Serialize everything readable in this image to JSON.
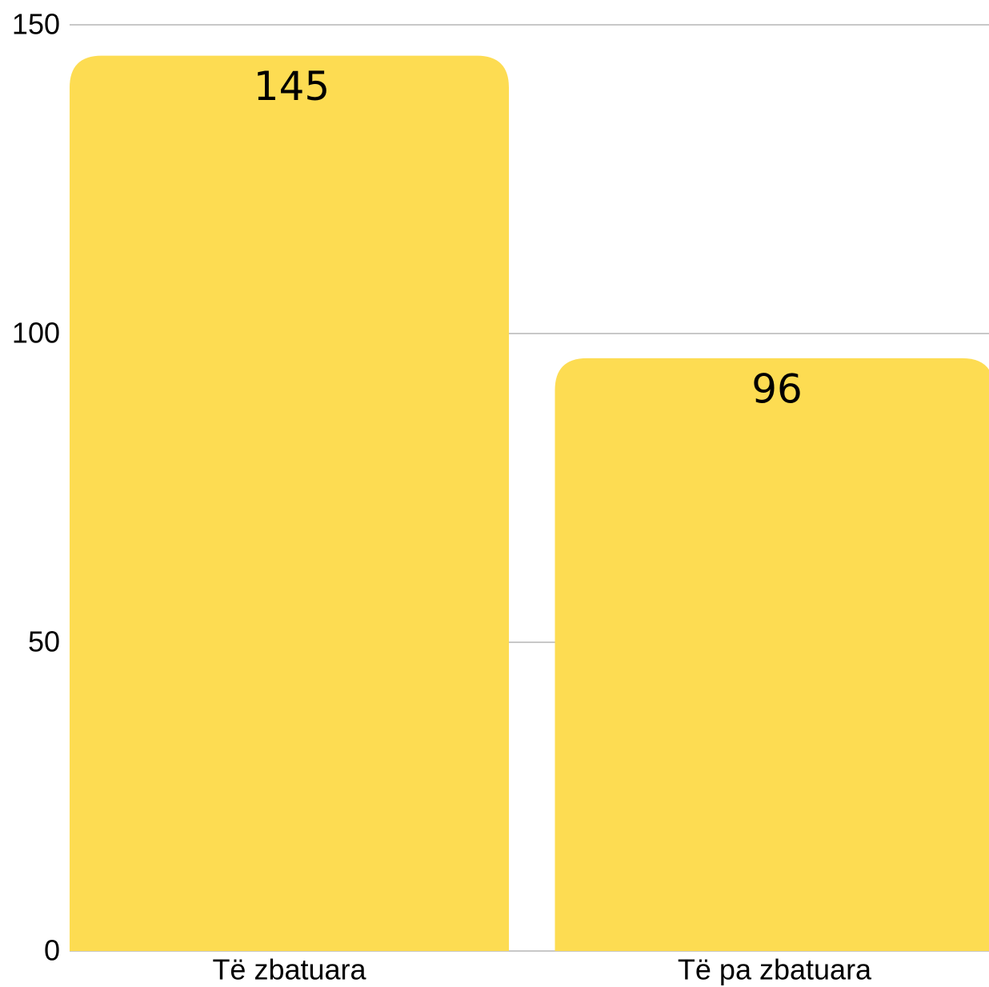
{
  "chart_data": {
    "type": "bar",
    "categories": [
      "Të zbatuara",
      "Të pa zbatuara"
    ],
    "values": [
      145,
      96
    ],
    "color": "#fddc52",
    "ylim": [
      0,
      150
    ],
    "yticks": [
      0,
      50,
      100,
      150
    ],
    "grid": true
  }
}
